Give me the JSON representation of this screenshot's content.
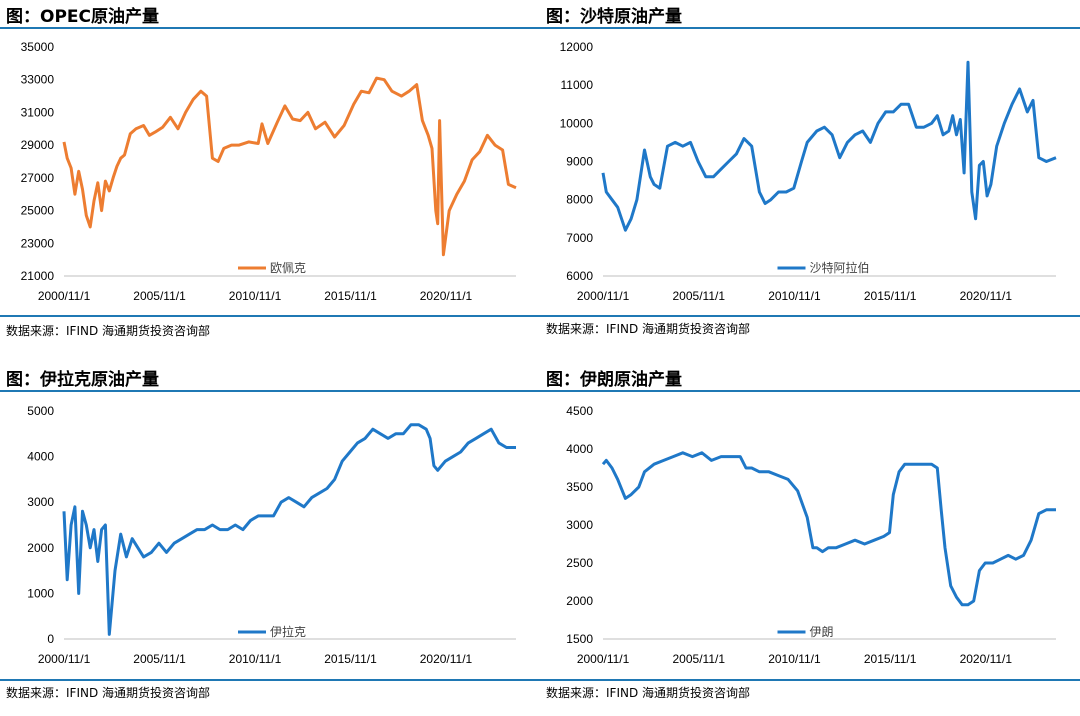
{
  "source_text": "数据来源：IFIND   海通期货投资咨询部",
  "panels": [
    {
      "title": "图：OPEC原油产量"
    },
    {
      "title": "图：沙特原油产量"
    },
    {
      "title": "图：伊拉克原油产量"
    },
    {
      "title": "图：伊朗原油产量"
    }
  ],
  "chart_data": [
    {
      "type": "line",
      "title": "图：OPEC原油产量",
      "x_ticks": [
        "2000/11/1",
        "2005/11/1",
        "2010/11/1",
        "2015/11/1",
        "2020/11/1"
      ],
      "x_range": [
        2000.83,
        2024.5
      ],
      "ylim": [
        21000,
        35000
      ],
      "y_ticks": [
        21000,
        23000,
        25000,
        27000,
        29000,
        31000,
        33000,
        35000
      ],
      "legend": "bottom-center",
      "color": "#ed7d31",
      "series": [
        {
          "name": "欧佩克",
          "x": [
            2000.83,
            2001.0,
            2001.2,
            2001.4,
            2001.6,
            2001.8,
            2002.0,
            2002.2,
            2002.4,
            2002.6,
            2002.8,
            2003.0,
            2003.2,
            2003.4,
            2003.6,
            2003.8,
            2004.0,
            2004.3,
            2004.6,
            2005.0,
            2005.3,
            2005.6,
            2006.0,
            2006.4,
            2006.8,
            2007.2,
            2007.6,
            2008.0,
            2008.3,
            2008.6,
            2008.9,
            2009.2,
            2009.6,
            2010.0,
            2010.5,
            2011.0,
            2011.2,
            2011.5,
            2012.0,
            2012.4,
            2012.8,
            2013.2,
            2013.6,
            2014.0,
            2014.5,
            2015.0,
            2015.5,
            2016.0,
            2016.4,
            2016.8,
            2017.2,
            2017.6,
            2018.0,
            2018.5,
            2018.9,
            2019.3,
            2019.6,
            2019.9,
            2020.1,
            2020.3,
            2020.4,
            2020.5,
            2020.7,
            2021.0,
            2021.4,
            2021.8,
            2022.2,
            2022.6,
            2023.0,
            2023.4,
            2023.8,
            2024.1,
            2024.5
          ],
          "values": [
            29200,
            28200,
            27600,
            26000,
            27400,
            26300,
            24700,
            24000,
            25600,
            26700,
            25000,
            26800,
            26200,
            27000,
            27700,
            28200,
            28400,
            29700,
            30000,
            30200,
            29600,
            29800,
            30100,
            30700,
            30000,
            31000,
            31800,
            32300,
            32000,
            28200,
            28000,
            28800,
            29000,
            29000,
            29200,
            29100,
            30300,
            29100,
            30400,
            31400,
            30600,
            30500,
            31000,
            30000,
            30400,
            29500,
            30200,
            31500,
            32300,
            32200,
            33100,
            33000,
            32300,
            32000,
            32300,
            32700,
            30500,
            29600,
            28800,
            25000,
            24200,
            30500,
            22300,
            25000,
            26000,
            26800,
            28100,
            28600,
            29600,
            29000,
            28700,
            26600,
            26400
          ]
        }
      ]
    },
    {
      "type": "line",
      "title": "图：沙特原油产量",
      "x_ticks": [
        "2000/11/1",
        "2005/11/1",
        "2010/11/1",
        "2015/11/1",
        "2020/11/1"
      ],
      "x_range": [
        2000.83,
        2024.5
      ],
      "ylim": [
        6000,
        12000
      ],
      "y_ticks": [
        6000,
        7000,
        8000,
        9000,
        10000,
        11000,
        12000
      ],
      "legend": "bottom-center",
      "color": "#1f78c8",
      "series": [
        {
          "name": "沙特阿拉伯",
          "x": [
            2000.83,
            2001.0,
            2001.3,
            2001.6,
            2002.0,
            2002.3,
            2002.6,
            2003.0,
            2003.3,
            2003.5,
            2003.8,
            2004.2,
            2004.6,
            2005.0,
            2005.4,
            2005.8,
            2006.2,
            2006.6,
            2007.0,
            2007.4,
            2007.8,
            2008.2,
            2008.6,
            2009.0,
            2009.3,
            2009.6,
            2010.0,
            2010.4,
            2010.8,
            2011.2,
            2011.5,
            2012.0,
            2012.4,
            2012.8,
            2013.2,
            2013.6,
            2014.0,
            2014.4,
            2014.8,
            2015.2,
            2015.6,
            2016.0,
            2016.4,
            2016.8,
            2017.2,
            2017.6,
            2018.0,
            2018.3,
            2018.6,
            2018.9,
            2019.1,
            2019.3,
            2019.5,
            2019.7,
            2019.9,
            2020.1,
            2020.3,
            2020.5,
            2020.7,
            2020.9,
            2021.1,
            2021.4,
            2021.8,
            2022.2,
            2022.6,
            2023.0,
            2023.3,
            2023.6,
            2024.0,
            2024.5
          ],
          "values": [
            8700,
            8200,
            8000,
            7800,
            7200,
            7500,
            8000,
            9300,
            8600,
            8400,
            8300,
            9400,
            9500,
            9400,
            9500,
            9000,
            8600,
            8600,
            8800,
            9000,
            9200,
            9600,
            9400,
            8200,
            7900,
            8000,
            8200,
            8200,
            8300,
            9000,
            9500,
            9800,
            9900,
            9700,
            9100,
            9500,
            9700,
            9800,
            9500,
            10000,
            10300,
            10300,
            10500,
            10500,
            9900,
            9900,
            10000,
            10200,
            9700,
            9800,
            10200,
            9700,
            10100,
            8700,
            11600,
            8200,
            7500,
            8900,
            9000,
            8100,
            8400,
            9400,
            10000,
            10500,
            10900,
            10300,
            10600,
            9100,
            9000,
            9100
          ]
        }
      ]
    },
    {
      "type": "line",
      "title": "图：伊拉克原油产量",
      "x_ticks": [
        "2000/11/1",
        "2005/11/1",
        "2010/11/1",
        "2015/11/1",
        "2020/11/1"
      ],
      "x_range": [
        2000.83,
        2024.5
      ],
      "ylim": [
        0,
        5000
      ],
      "y_ticks": [
        0,
        1000,
        2000,
        3000,
        4000,
        5000
      ],
      "legend": "bottom-center",
      "color": "#1f78c8",
      "series": [
        {
          "name": "伊拉克",
          "x": [
            2000.83,
            2001.0,
            2001.2,
            2001.4,
            2001.6,
            2001.8,
            2002.0,
            2002.2,
            2002.4,
            2002.6,
            2002.8,
            2003.0,
            2003.2,
            2003.5,
            2003.8,
            2004.1,
            2004.4,
            2004.7,
            2005.0,
            2005.4,
            2005.8,
            2006.2,
            2006.6,
            2007.0,
            2007.4,
            2007.8,
            2008.2,
            2008.6,
            2009.0,
            2009.4,
            2009.8,
            2010.2,
            2010.6,
            2011.0,
            2011.4,
            2011.8,
            2012.2,
            2012.6,
            2013.0,
            2013.4,
            2013.8,
            2014.2,
            2014.6,
            2015.0,
            2015.4,
            2015.8,
            2016.2,
            2016.6,
            2017.0,
            2017.4,
            2017.8,
            2018.2,
            2018.6,
            2019.0,
            2019.4,
            2019.8,
            2020.0,
            2020.2,
            2020.4,
            2020.8,
            2021.2,
            2021.6,
            2022.0,
            2022.4,
            2022.8,
            2023.2,
            2023.6,
            2024.0,
            2024.5
          ],
          "values": [
            2800,
            1300,
            2500,
            2900,
            1000,
            2800,
            2500,
            2000,
            2400,
            1700,
            2400,
            2500,
            100,
            1500,
            2300,
            1800,
            2200,
            2000,
            1800,
            1900,
            2100,
            1900,
            2100,
            2200,
            2300,
            2400,
            2400,
            2500,
            2400,
            2400,
            2500,
            2400,
            2600,
            2700,
            2700,
            2700,
            3000,
            3100,
            3000,
            2900,
            3100,
            3200,
            3300,
            3500,
            3900,
            4100,
            4300,
            4400,
            4600,
            4500,
            4400,
            4500,
            4500,
            4700,
            4700,
            4600,
            4400,
            3800,
            3700,
            3900,
            4000,
            4100,
            4300,
            4400,
            4500,
            4600,
            4300,
            4200,
            4200
          ]
        }
      ]
    },
    {
      "type": "line",
      "title": "图：伊朗原油产量",
      "x_ticks": [
        "2000/11/1",
        "2005/11/1",
        "2010/11/1",
        "2015/11/1",
        "2020/11/1"
      ],
      "x_range": [
        2000.83,
        2024.5
      ],
      "ylim": [
        1500,
        4500
      ],
      "y_ticks": [
        1500,
        2000,
        2500,
        3000,
        3500,
        4000,
        4500
      ],
      "legend": "bottom-center",
      "color": "#1f78c8",
      "series": [
        {
          "name": "伊朗",
          "x": [
            2000.83,
            2001.0,
            2001.3,
            2001.6,
            2002.0,
            2002.3,
            2002.7,
            2003.0,
            2003.5,
            2004.0,
            2004.5,
            2005.0,
            2005.5,
            2006.0,
            2006.5,
            2007.0,
            2007.5,
            2008.0,
            2008.3,
            2008.6,
            2009.0,
            2009.5,
            2010.0,
            2010.5,
            2011.0,
            2011.5,
            2011.8,
            2012.0,
            2012.3,
            2012.6,
            2013.0,
            2013.5,
            2014.0,
            2014.5,
            2015.0,
            2015.5,
            2015.8,
            2016.0,
            2016.3,
            2016.6,
            2017.0,
            2017.5,
            2018.0,
            2018.3,
            2018.5,
            2018.7,
            2019.0,
            2019.3,
            2019.6,
            2019.9,
            2020.2,
            2020.5,
            2020.8,
            2021.2,
            2021.6,
            2022.0,
            2022.4,
            2022.8,
            2023.2,
            2023.6,
            2024.0,
            2024.5
          ],
          "values": [
            3800,
            3850,
            3750,
            3600,
            3350,
            3400,
            3500,
            3700,
            3800,
            3850,
            3900,
            3950,
            3900,
            3950,
            3850,
            3900,
            3900,
            3900,
            3750,
            3750,
            3700,
            3700,
            3650,
            3600,
            3450,
            3100,
            2700,
            2700,
            2650,
            2700,
            2700,
            2750,
            2800,
            2750,
            2800,
            2850,
            2900,
            3400,
            3700,
            3800,
            3800,
            3800,
            3800,
            3750,
            3200,
            2700,
            2200,
            2050,
            1950,
            1950,
            2000,
            2400,
            2500,
            2500,
            2550,
            2600,
            2550,
            2600,
            2800,
            3150,
            3200,
            3200
          ]
        }
      ]
    }
  ]
}
